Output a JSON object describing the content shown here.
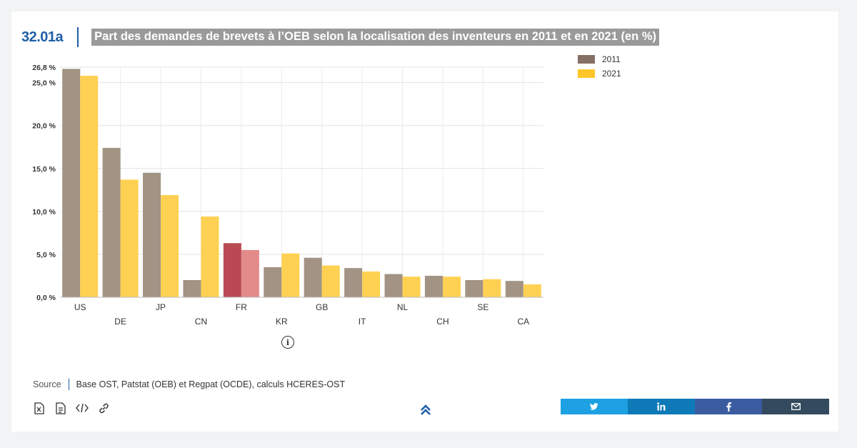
{
  "header": {
    "code": "32.01a",
    "title": "Part des demandes de brevets à l’OEB selon la localisation des inventeurs en 2011 et en 2021 (en %)"
  },
  "legend": [
    {
      "label": "2011",
      "color": "#857066"
    },
    {
      "label": "2021",
      "color": "#ffc629"
    }
  ],
  "chart_data": {
    "type": "bar",
    "title": "Part des demandes de brevets à l’OEB selon la localisation des inventeurs en 2011 et en 2021 (en %)",
    "categories": [
      "US",
      "DE",
      "JP",
      "CN",
      "FR",
      "KR",
      "GB",
      "IT",
      "NL",
      "CH",
      "SE",
      "CA"
    ],
    "series": [
      {
        "name": "2011",
        "values": [
          26.6,
          17.4,
          14.5,
          2.0,
          6.3,
          3.5,
          4.6,
          3.4,
          2.7,
          2.5,
          2.0,
          1.9
        ]
      },
      {
        "name": "2021",
        "values": [
          25.8,
          13.7,
          11.9,
          9.4,
          5.5,
          5.1,
          3.7,
          3.0,
          2.4,
          2.4,
          2.1,
          1.5
        ]
      }
    ],
    "highlight_category": "FR",
    "highlight_colors": {
      "2011": "#b94a53",
      "2021": "#e38a8a"
    },
    "y_ticks": [
      {
        "value": 0,
        "label": "0,0 %"
      },
      {
        "value": 5,
        "label": "5,0 %"
      },
      {
        "value": 10,
        "label": "10,0 %"
      },
      {
        "value": 15,
        "label": "15,0 %"
      },
      {
        "value": 20,
        "label": "20,0 %"
      },
      {
        "value": 25,
        "label": "25,0 %"
      },
      {
        "value": 26.8,
        "label": "26,8 %"
      }
    ],
    "ylim": [
      0,
      26.8
    ],
    "xlabel": "",
    "ylabel": "",
    "grid": true,
    "legend_position": "top-right"
  },
  "info_icon": "info-icon",
  "source": {
    "label": "Source",
    "text": "Base OST, Patstat (OEB) et Regpat (OCDE), calculs HCERES-OST"
  },
  "tools": [
    {
      "icon": "excel-file-icon"
    },
    {
      "icon": "document-icon"
    },
    {
      "icon": "embed-code-icon"
    },
    {
      "icon": "link-icon"
    }
  ],
  "scroll_top_icon": "double-chevron-up-icon",
  "share": [
    {
      "icon": "twitter-icon",
      "color": "#1da1e2"
    },
    {
      "icon": "linkedin-icon",
      "color": "#0e7bb8"
    },
    {
      "icon": "facebook-icon",
      "color": "#3b5ba0"
    },
    {
      "icon": "mail-icon",
      "color": "#344a5e"
    }
  ]
}
